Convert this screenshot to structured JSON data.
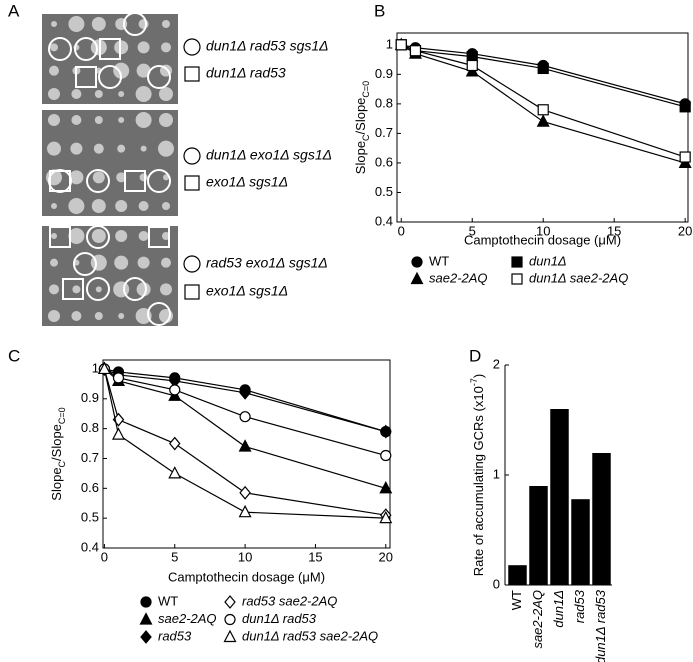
{
  "panel_a": {
    "label": "A",
    "legends": [
      [
        "dun1Δ rad53 sgs1Δ",
        "dun1Δ rad53"
      ],
      [
        "dun1Δ exo1Δ sgs1Δ",
        "exo1Δ sgs1Δ"
      ],
      [
        "rad53 exo1Δ sgs1Δ",
        "exo1Δ sgs1Δ"
      ]
    ]
  },
  "chart_data": [
    {
      "type": "line",
      "panel": "B",
      "ylabel": [
        "Slope",
        "C",
        "/Slope",
        "C=0"
      ],
      "xlabel": "Camptothecin dosage (μM)",
      "x": [
        0,
        1,
        5,
        10,
        20
      ],
      "xlim": [
        -0.3,
        20.2
      ],
      "xticks": [
        0,
        5,
        10,
        15,
        20
      ],
      "ylim": [
        0.4,
        1.04
      ],
      "yticks": [
        0.4,
        0.5,
        0.6,
        0.7,
        0.8,
        0.9,
        1
      ],
      "series": [
        {
          "name": "WT",
          "color": "#000000",
          "marker": "circle",
          "filled": true,
          "italic": false,
          "values": [
            1,
            0.99,
            0.97,
            0.93,
            0.8
          ]
        },
        {
          "name": "sae2-2AQ",
          "color": "#000000",
          "marker": "triangle",
          "filled": true,
          "italic": true,
          "values": [
            1,
            0.97,
            0.91,
            0.74,
            0.6
          ]
        },
        {
          "name": "dun1Δ",
          "color": "#000000",
          "marker": "square",
          "filled": true,
          "italic": true,
          "values": [
            1,
            0.98,
            0.96,
            0.92,
            0.79
          ]
        },
        {
          "name": "dun1Δ sae2-2AQ",
          "color": "#000000",
          "marker": "square",
          "filled": false,
          "italic": true,
          "values": [
            1,
            0.98,
            0.93,
            0.78,
            0.62
          ]
        }
      ]
    },
    {
      "type": "line",
      "panel": "C",
      "ylabel": [
        "Slope",
        "C",
        "/Slope",
        "C=0"
      ],
      "xlabel": "Camptothecin dosage (μM)",
      "x": [
        0,
        1,
        5,
        10,
        20
      ],
      "xlim": [
        -0.1,
        20.3
      ],
      "xticks": [
        0,
        5,
        10,
        15,
        20
      ],
      "ylim": [
        0.4,
        1.03
      ],
      "yticks": [
        0.4,
        0.5,
        0.6,
        0.7,
        0.8,
        0.9,
        1
      ],
      "series": [
        {
          "name": "WT",
          "color": "#000000",
          "marker": "circle",
          "filled": true,
          "italic": false,
          "values": [
            1,
            0.99,
            0.97,
            0.93,
            0.79
          ]
        },
        {
          "name": "sae2-2AQ",
          "color": "#000000",
          "marker": "triangle",
          "filled": true,
          "italic": true,
          "values": [
            1,
            0.96,
            0.91,
            0.74,
            0.6
          ]
        },
        {
          "name": "rad53",
          "color": "#000000",
          "marker": "diamond",
          "filled": true,
          "italic": true,
          "values": [
            1,
            0.98,
            0.96,
            0.92,
            0.79
          ]
        },
        {
          "name": "rad53 sae2-2AQ",
          "color": "#000000",
          "marker": "diamond",
          "filled": false,
          "italic": true,
          "values": [
            1,
            0.83,
            0.75,
            0.585,
            0.51
          ]
        },
        {
          "name": "dun1Δ rad53",
          "color": "#000000",
          "marker": "circle",
          "filled": false,
          "italic": true,
          "values": [
            1,
            0.97,
            0.93,
            0.84,
            0.71
          ]
        },
        {
          "name": "dun1Δ rad53 sae2-2AQ",
          "color": "#000000",
          "marker": "triangle",
          "filled": false,
          "italic": true,
          "values": [
            1,
            0.78,
            0.65,
            0.52,
            0.5
          ]
        }
      ]
    },
    {
      "type": "bar",
      "panel": "D",
      "ylabel": [
        "Rate of accumulating GCRs (x10",
        "-7",
        ")"
      ],
      "categories": [
        "WT",
        "sae2-2AQ",
        "dun1Δ",
        "rad53",
        "dun1Δ rad53"
      ],
      "category_italic": [
        false,
        true,
        true,
        true,
        true
      ],
      "values": [
        0.18,
        0.9,
        1.6,
        0.78,
        1.2
      ],
      "color": "#000000",
      "ylim": [
        0,
        2
      ],
      "yticks": [
        0,
        1,
        2
      ]
    }
  ]
}
